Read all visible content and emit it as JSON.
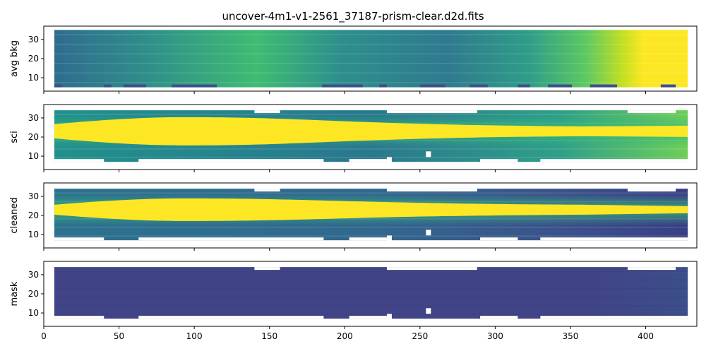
{
  "figure": {
    "title": "uncover-4m1-v1-2561_37187-prism-clear.d2d.fits"
  },
  "chart_data": [
    {
      "type": "heatmap",
      "name": "avg-bkg",
      "ylabel": "avg bkg",
      "xlim": [
        0,
        434
      ],
      "ylim": [
        3,
        37
      ],
      "xticks": [
        0,
        50,
        100,
        150,
        200,
        250,
        300,
        350,
        400
      ],
      "yticks": [
        10,
        20,
        30
      ],
      "xtick_labels_visible": false,
      "colormap": "viridis",
      "image_extent": {
        "x": [
          7,
          428
        ],
        "y": [
          5,
          35
        ]
      },
      "description": "background level increasing strongly toward red end (x>360), with faint horizontal bands"
    },
    {
      "type": "heatmap",
      "name": "sci",
      "ylabel": "sci",
      "xlim": [
        0,
        434
      ],
      "ylim": [
        3,
        37
      ],
      "xticks": [
        0,
        50,
        100,
        150,
        200,
        250,
        300,
        350,
        400
      ],
      "yticks": [
        10,
        20,
        30
      ],
      "xtick_labels_visible": false,
      "colormap": "viridis",
      "image_extent": {
        "x": [
          7,
          428
        ],
        "y": [
          7,
          34
        ]
      },
      "trace_center_y": 23,
      "description": "bright saturated trace centered near y≈23, widest near x≈85"
    },
    {
      "type": "heatmap",
      "name": "cleaned",
      "ylabel": "cleaned",
      "xlim": [
        0,
        434
      ],
      "ylim": [
        3,
        37
      ],
      "xticks": [
        0,
        50,
        100,
        150,
        200,
        250,
        300,
        350,
        400
      ],
      "yticks": [
        10,
        20,
        30
      ],
      "xtick_labels_visible": false,
      "colormap": "viridis",
      "image_extent": {
        "x": [
          7,
          428
        ],
        "y": [
          7,
          34
        ]
      },
      "trace_center_y": 23,
      "description": "background-subtracted trace, dark residuals at red end"
    },
    {
      "type": "heatmap",
      "name": "mask",
      "ylabel": "mask",
      "xlim": [
        0,
        434
      ],
      "ylim": [
        3,
        37
      ],
      "xticks": [
        0,
        50,
        100,
        150,
        200,
        250,
        300,
        350,
        400
      ],
      "yticks": [
        10,
        20,
        30
      ],
      "xtick_labels_visible": true,
      "colormap": "viridis",
      "image_extent": {
        "x": [
          7,
          428
        ],
        "y": [
          7,
          34
        ]
      },
      "description": "mostly uniform dark purple-blue mask with slight variation at red end"
    }
  ]
}
